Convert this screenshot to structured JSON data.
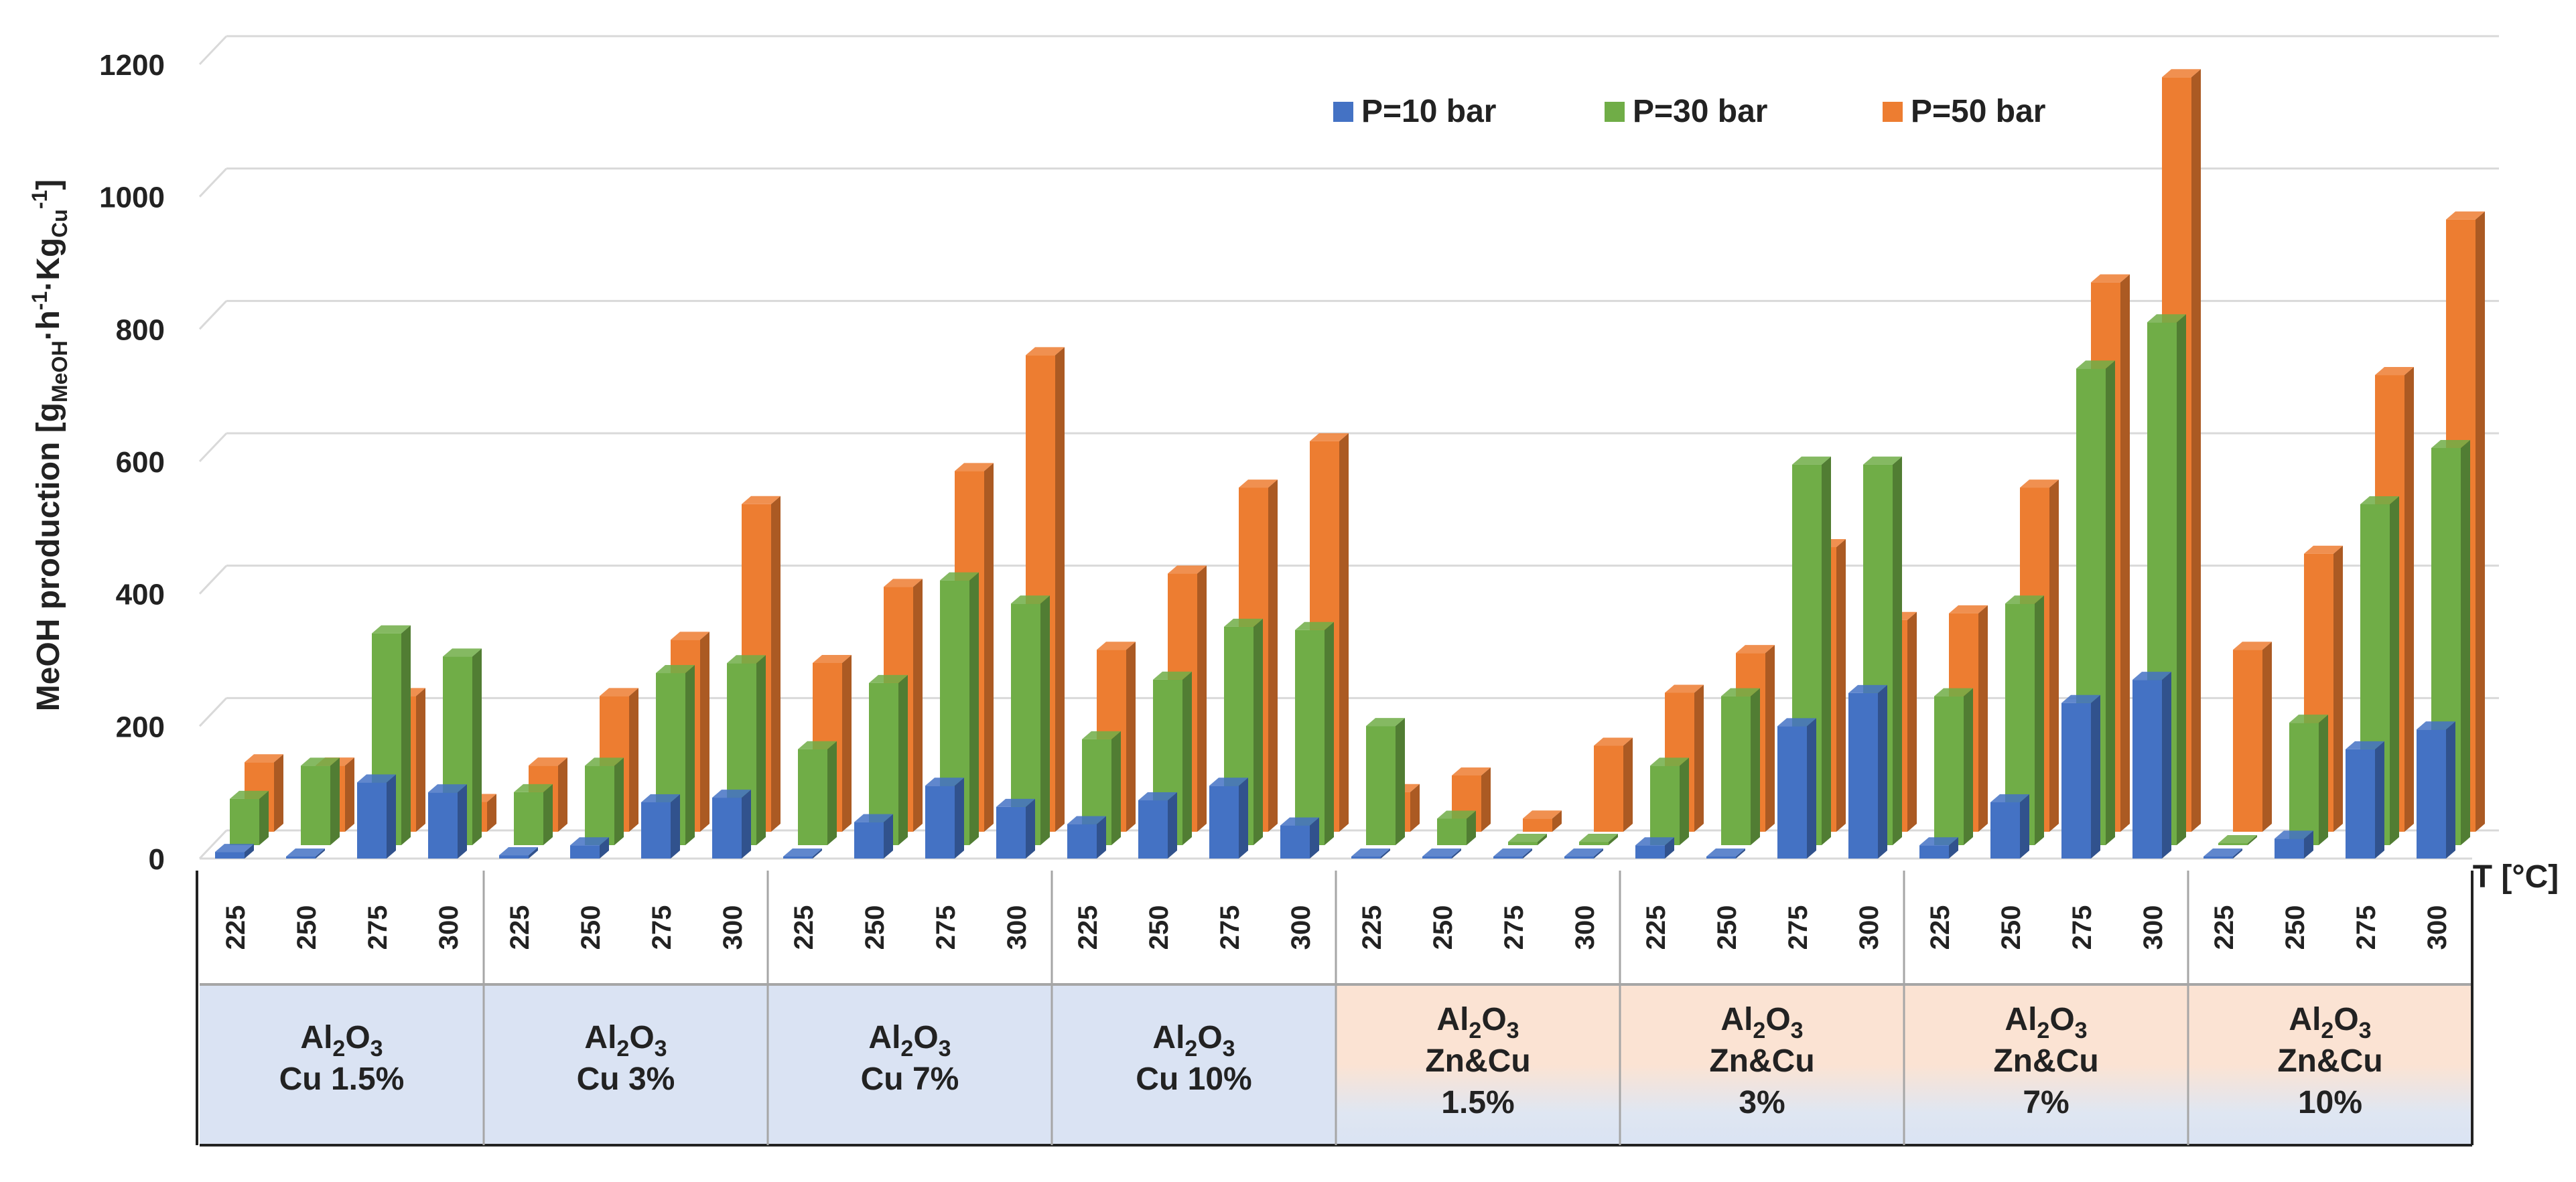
{
  "chart_data": {
    "type": "bar",
    "style": "3d-clustered-column",
    "ylabel": "MeOH production [g",
    "ylabel_sub1": "MeOH",
    "ylabel_mid1": "·h",
    "ylabel_sup1": "-1",
    "ylabel_mid2": "·Kg",
    "ylabel_sub2": "Cu",
    "ylabel_sup2": "-1",
    "ylabel_end": "]",
    "xlabel": "T [°C]",
    "ylim": [
      0,
      1200
    ],
    "yticks": [
      0,
      200,
      400,
      600,
      800,
      1000,
      1200
    ],
    "groups": [
      {
        "line1": "Al",
        "sub": "2",
        "line1b": "O",
        "sub2": "3",
        "line2": "Cu 1.5%",
        "line3": "",
        "family": "Cu"
      },
      {
        "line1": "Al",
        "sub": "2",
        "line1b": "O",
        "sub2": "3",
        "line2": "Cu 3%",
        "line3": "",
        "family": "Cu"
      },
      {
        "line1": "Al",
        "sub": "2",
        "line1b": "O",
        "sub2": "3",
        "line2": "Cu 7%",
        "line3": "",
        "family": "Cu"
      },
      {
        "line1": "Al",
        "sub": "2",
        "line1b": "O",
        "sub2": "3",
        "line2": "Cu 10%",
        "line3": "",
        "family": "Cu"
      },
      {
        "line1": "Al",
        "sub": "2",
        "line1b": "O",
        "sub2": "3",
        "line2": "Zn&Cu",
        "line3": "1.5%",
        "family": "ZnCu"
      },
      {
        "line1": "Al",
        "sub": "2",
        "line1b": "O",
        "sub2": "3",
        "line2": "Zn&Cu",
        "line3": "3%",
        "family": "ZnCu"
      },
      {
        "line1": "Al",
        "sub": "2",
        "line1b": "O",
        "sub2": "3",
        "line2": "Zn&Cu",
        "line3": "7%",
        "family": "ZnCu"
      },
      {
        "line1": "Al",
        "sub": "2",
        "line1b": "O",
        "sub2": "3",
        "line2": "Zn&Cu",
        "line3": "10%",
        "family": "ZnCu"
      }
    ],
    "temperatures": [
      "225",
      "250",
      "275",
      "300"
    ],
    "series": [
      {
        "name": "P=10 bar",
        "color": "#4472C4",
        "values": [
          10,
          0,
          115,
          100,
          5,
          20,
          85,
          92,
          0,
          55,
          110,
          78,
          52,
          88,
          110,
          50,
          0,
          0,
          0,
          0,
          20,
          0,
          200,
          250,
          20,
          85,
          235,
          270,
          0,
          30,
          165,
          195
        ]
      },
      {
        "name": "P=30 bar",
        "color": "#70AD47",
        "values": [
          70,
          120,
          320,
          285,
          80,
          120,
          260,
          275,
          145,
          245,
          400,
          365,
          160,
          250,
          330,
          325,
          180,
          40,
          5,
          5,
          120,
          225,
          575,
          575,
          225,
          365,
          720,
          790,
          0,
          185,
          515,
          600
        ]
      },
      {
        "name": "P=50 bar",
        "color": "#ED7D31",
        "values": [
          105,
          100,
          205,
          45,
          100,
          205,
          290,
          495,
          255,
          370,
          545,
          720,
          275,
          390,
          520,
          590,
          60,
          85,
          20,
          130,
          210,
          270,
          430,
          320,
          330,
          520,
          830,
          1140,
          275,
          420,
          690,
          925
        ]
      }
    ],
    "legend": "top-right",
    "grid": true
  }
}
